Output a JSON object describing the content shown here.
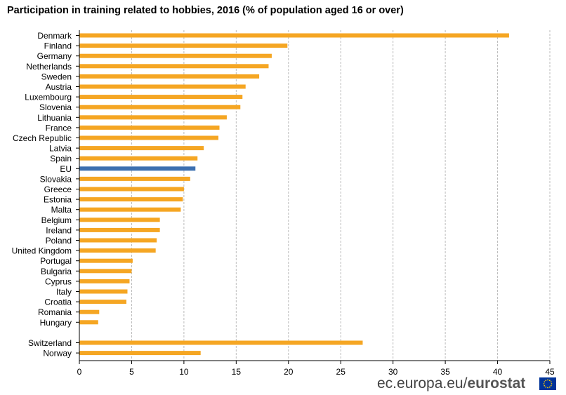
{
  "chart_data": {
    "type": "bar",
    "orientation": "horizontal",
    "title": "Participation in training related to hobbies, 2016 (% of population aged 16 or over)",
    "categories": [
      "Denmark",
      "Finland",
      "Germany",
      "Netherlands",
      "Sweden",
      "Austria",
      "Luxembourg",
      "Slovenia",
      "Lithuania",
      "France",
      "Czech Republic",
      "Latvia",
      "Spain",
      "EU",
      "Slovakia",
      "Greece",
      "Estonia",
      "Malta",
      "Belgium",
      "Ireland",
      "Poland",
      "United Kingdom",
      "Portugal",
      "Bulgaria",
      "Cyprus",
      "Italy",
      "Croatia",
      "Romania",
      "Hungary",
      "Switzerland",
      "Norway"
    ],
    "values": [
      41.1,
      19.9,
      18.4,
      18.1,
      17.2,
      15.9,
      15.6,
      15.4,
      14.1,
      13.4,
      13.3,
      11.9,
      11.3,
      11.1,
      10.6,
      10.0,
      9.9,
      9.7,
      7.7,
      7.7,
      7.4,
      7.3,
      5.1,
      5.0,
      4.8,
      4.6,
      4.5,
      1.9,
      1.8,
      27.1,
      11.6
    ],
    "highlight": "EU",
    "group_gap_before": "Switzerland",
    "xlim": [
      0,
      45
    ],
    "xticks": [
      0,
      5,
      10,
      15,
      20,
      25,
      30,
      35,
      40,
      45
    ],
    "xlabel": "",
    "ylabel": "",
    "grid": "vertical dashed",
    "colors": {
      "bar": "#F5A623",
      "highlight": "#3C6FB0",
      "grid": "#BBBBBB"
    }
  },
  "source": {
    "prefix": "ec.europa.eu/",
    "brand": "eurostat"
  }
}
